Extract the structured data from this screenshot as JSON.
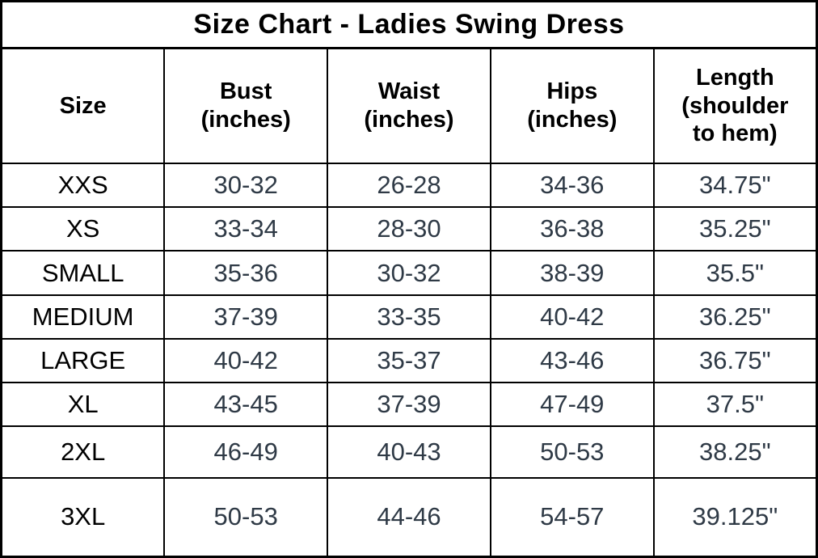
{
  "title": "Size Chart - Ladies Swing Dress",
  "colors": {
    "background": "#ffffff",
    "border": "#000000",
    "header_text": "#000000",
    "size_label_text": "#000000",
    "measurement_text": "#2f3a46"
  },
  "table": {
    "columns": [
      {
        "key": "size",
        "label": "Size"
      },
      {
        "key": "bust",
        "label": "Bust\n(inches)"
      },
      {
        "key": "waist",
        "label": "Waist\n(inches)"
      },
      {
        "key": "hips",
        "label": "Hips\n(inches)"
      },
      {
        "key": "length",
        "label": "Length\n(shoulder\nto hem)"
      }
    ],
    "rows": [
      {
        "size": "XXS",
        "bust": "30-32",
        "waist": "26-28",
        "hips": "34-36",
        "length": "34.75\""
      },
      {
        "size": "XS",
        "bust": "33-34",
        "waist": "28-30",
        "hips": "36-38",
        "length": "35.25\""
      },
      {
        "size": "SMALL",
        "bust": "35-36",
        "waist": "30-32",
        "hips": "38-39",
        "length": "35.5\""
      },
      {
        "size": "MEDIUM",
        "bust": "37-39",
        "waist": "33-35",
        "hips": "40-42",
        "length": "36.25\""
      },
      {
        "size": "LARGE",
        "bust": "40-42",
        "waist": "35-37",
        "hips": "43-46",
        "length": "36.75\""
      },
      {
        "size": "XL",
        "bust": "43-45",
        "waist": "37-39",
        "hips": "47-49",
        "length": "37.5\""
      },
      {
        "size": "2XL",
        "bust": "46-49",
        "waist": "40-43",
        "hips": "50-53",
        "length": "38.25\""
      },
      {
        "size": "3XL",
        "bust": "50-53",
        "waist": "44-46",
        "hips": "54-57",
        "length": "39.125\""
      }
    ]
  }
}
